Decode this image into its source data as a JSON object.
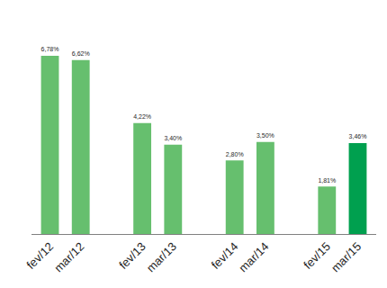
{
  "chart_data": {
    "type": "bar",
    "categories": [
      "fev/12",
      "mar/12",
      null,
      "fev/13",
      "mar/13",
      null,
      "fev/14",
      "mar/14",
      null,
      "fev/15",
      "mar/15"
    ],
    "values": [
      6.78,
      6.62,
      null,
      4.22,
      3.4,
      null,
      2.8,
      3.5,
      null,
      1.81,
      3.46
    ],
    "value_labels": [
      "6,78%",
      "6,62%",
      null,
      "4,22%",
      "3,40%",
      null,
      "2,80%",
      "3,50%",
      null,
      "1,81%",
      "3,46%"
    ],
    "colors": [
      "#66bf6e",
      "#66bf6e",
      null,
      "#66bf6e",
      "#66bf6e",
      null,
      "#66bf6e",
      "#66bf6e",
      null,
      "#66bf6e",
      "#00a04f"
    ],
    "ylim": [
      0,
      7.6
    ],
    "data_labels": true,
    "tick_labels": "x",
    "grid": false
  }
}
